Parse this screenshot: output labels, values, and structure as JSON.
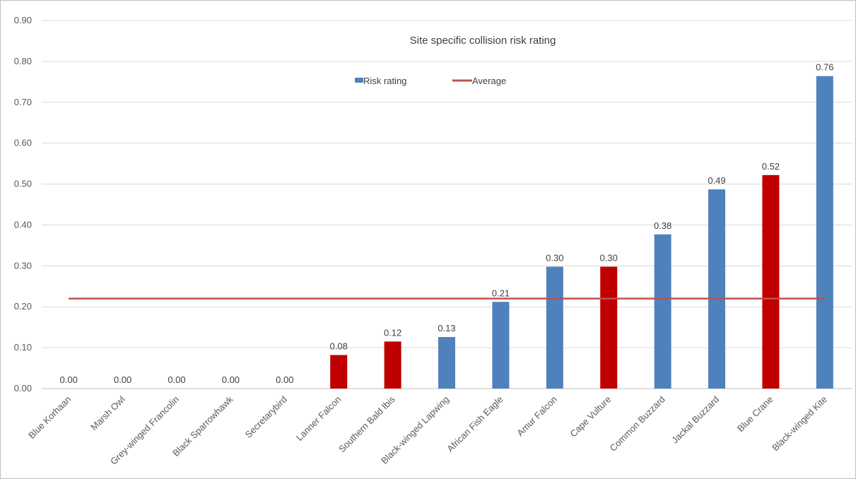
{
  "chart_data": {
    "type": "bar",
    "title": "Site specific collision risk rating",
    "categories": [
      "Blue Korhaan",
      "Marsh Owl",
      "Grey-winged Francolin",
      "Black Sparrowhawk",
      "Secretarybird",
      "Lanner Falcon",
      "Southern Bald Ibis",
      "Black-winged Lapwing",
      "African Fish Eagle",
      "Amur Falcon",
      "Cape Vulture",
      "Common Buzzard",
      "Jackal Buzzard",
      "Blue Crane",
      "Black-winged Kite"
    ],
    "values": [
      0.0,
      0.0,
      0.0,
      0.0,
      0.0,
      0.082,
      0.115,
      0.126,
      0.212,
      0.298,
      0.298,
      0.377,
      0.487,
      0.522,
      0.764
    ],
    "data_labels": [
      "0.00",
      "0.00",
      "0.00",
      "0.00",
      "0.00",
      "0.08",
      "0.12",
      "0.13",
      "0.21",
      "0.30",
      "0.30",
      "0.38",
      "0.49",
      "0.52",
      "0.76"
    ],
    "highlighted": [
      false,
      false,
      false,
      false,
      false,
      true,
      true,
      false,
      false,
      false,
      true,
      false,
      false,
      true,
      false
    ],
    "average": 0.22,
    "series": [
      {
        "name": "Risk rating",
        "color": "#4f81bd"
      },
      {
        "name": "Average",
        "color": "#c0504d"
      }
    ],
    "highlight_color": "#c00000",
    "ylim": [
      0,
      0.9
    ],
    "y_ticks": [
      "0.00",
      "0.10",
      "0.20",
      "0.30",
      "0.40",
      "0.50",
      "0.60",
      "0.70",
      "0.80",
      "0.90"
    ],
    "grid": true,
    "legend_position": "top-center",
    "xlabel": "",
    "ylabel": ""
  }
}
